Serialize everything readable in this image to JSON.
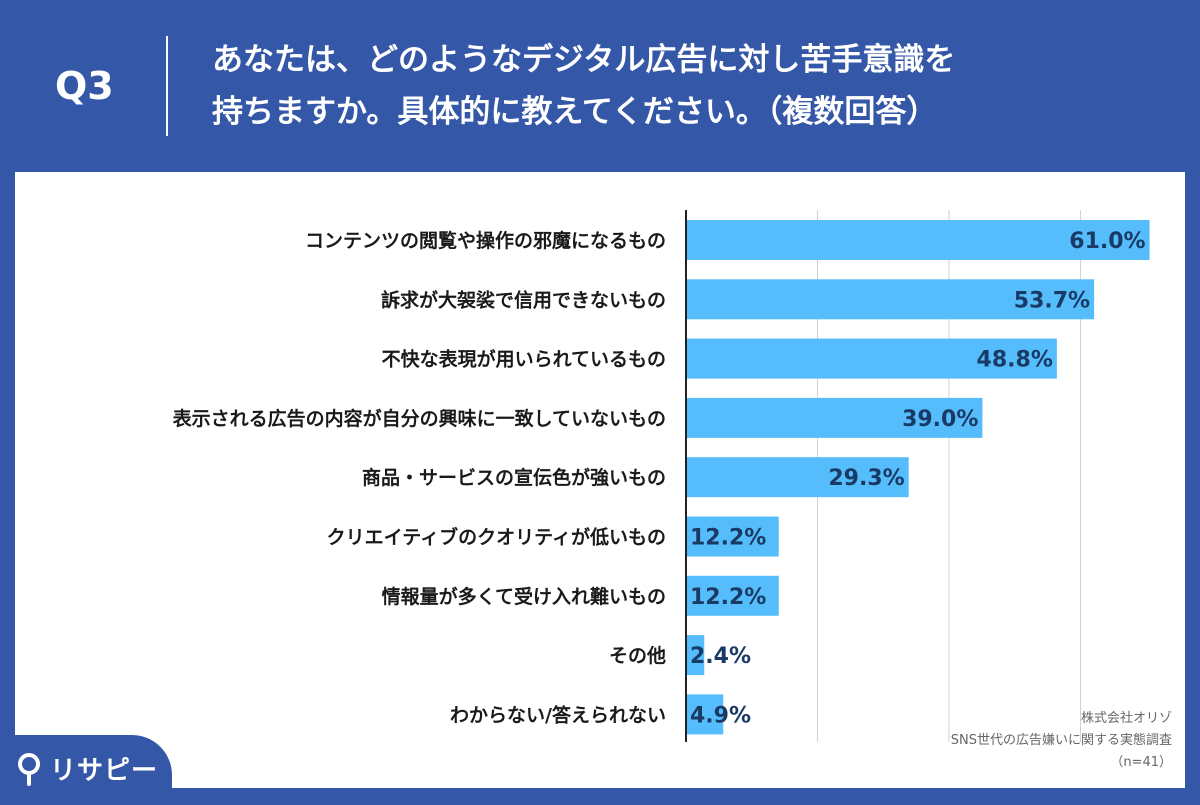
{
  "header": {
    "q_label": "Q3",
    "question_line1": "あなたは、どのようなデジタル広告に対し苦手意識を",
    "question_line2": "持ちますか。具体的に教えてください。（複数回答）"
  },
  "colors": {
    "background": "#3557a8",
    "panel": "#ffffff",
    "bar": "#55bdfb",
    "value_text": "#1a3a66",
    "category_text": "#1a1a1a"
  },
  "chart_data": {
    "type": "bar",
    "orientation": "horizontal",
    "categories": [
      "コンテンツの閲覧や操作の邪魔になるもの",
      "訴求が大袈裟で信用できないもの",
      "不快な表現が用いられているもの",
      "表示される広告の内容が自分の興味に一致していないもの",
      "商品・サービスの宣伝色が強いもの",
      "クリエイティブのクオリティが低いもの",
      "情報量が多くて受け入れ難いもの",
      "その他",
      "わからない/答えられない"
    ],
    "values": [
      61.0,
      53.7,
      48.8,
      39.0,
      29.3,
      12.2,
      12.2,
      2.4,
      4.9
    ],
    "value_labels": [
      "61.0%",
      "53.7%",
      "48.8%",
      "39.0%",
      "29.3%",
      "12.2%",
      "12.2%",
      "2.4%",
      "4.9%"
    ],
    "xlim": [
      0,
      70
    ],
    "grid": true
  },
  "source": {
    "company": "株式会社オリゾ",
    "survey": "SNS世代の広告嫌いに関する実態調査",
    "sample": "（n=41）"
  },
  "logo": {
    "text": "リサピー"
  }
}
